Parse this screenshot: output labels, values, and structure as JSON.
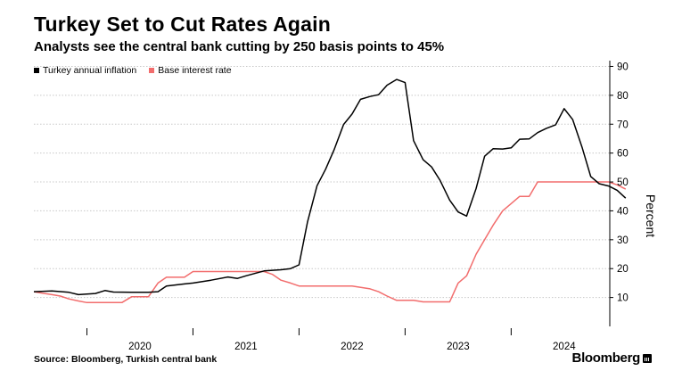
{
  "chart_data": {
    "type": "line",
    "title": "Turkey Set to Cut Rates Again",
    "subtitle": "Analysts see the central bank cutting by 250 basis points to 45%",
    "ylabel": "Percent",
    "xlabel": "",
    "ylim": [
      0,
      92
    ],
    "yticks": [
      10,
      20,
      30,
      40,
      50,
      60,
      70,
      80,
      90
    ],
    "xlim": [
      2019.5,
      2024.93
    ],
    "xticks": [
      {
        "label": "2020",
        "value": 2020.0
      },
      {
        "label": "2021",
        "value": 2021.0
      },
      {
        "label": "2022",
        "value": 2022.0
      },
      {
        "label": "2023",
        "value": 2023.0
      },
      {
        "label": "2024",
        "value": 2024.0
      }
    ],
    "legend_position": "top-left",
    "series": [
      {
        "name": "Turkey annual inflation",
        "color": "#000000",
        "points": [
          [
            2019.5,
            12.0
          ],
          [
            2019.67,
            12.3
          ],
          [
            2019.83,
            11.8
          ],
          [
            2019.92,
            11.0
          ],
          [
            2020.08,
            11.4
          ],
          [
            2020.17,
            12.4
          ],
          [
            2020.25,
            11.9
          ],
          [
            2020.42,
            11.8
          ],
          [
            2020.58,
            11.8
          ],
          [
            2020.67,
            12.0
          ],
          [
            2020.75,
            14.0
          ],
          [
            2020.92,
            14.7
          ],
          [
            2021.0,
            15.0
          ],
          [
            2021.17,
            16.0
          ],
          [
            2021.33,
            17.1
          ],
          [
            2021.42,
            16.6
          ],
          [
            2021.5,
            17.5
          ],
          [
            2021.67,
            19.2
          ],
          [
            2021.83,
            19.6
          ],
          [
            2021.92,
            20.0
          ],
          [
            2022.0,
            21.3
          ],
          [
            2022.08,
            36.1
          ],
          [
            2022.17,
            48.7
          ],
          [
            2022.25,
            54.4
          ],
          [
            2022.33,
            61.1
          ],
          [
            2022.42,
            69.9
          ],
          [
            2022.5,
            73.5
          ],
          [
            2022.58,
            78.6
          ],
          [
            2022.67,
            79.6
          ],
          [
            2022.75,
            80.2
          ],
          [
            2022.83,
            83.5
          ],
          [
            2022.92,
            85.5
          ],
          [
            2023.0,
            84.4
          ],
          [
            2023.08,
            64.3
          ],
          [
            2023.17,
            57.7
          ],
          [
            2023.25,
            55.2
          ],
          [
            2023.33,
            50.5
          ],
          [
            2023.42,
            43.7
          ],
          [
            2023.5,
            39.6
          ],
          [
            2023.58,
            38.2
          ],
          [
            2023.67,
            47.8
          ],
          [
            2023.75,
            58.9
          ],
          [
            2023.83,
            61.5
          ],
          [
            2023.92,
            61.4
          ],
          [
            2024.0,
            61.8
          ],
          [
            2024.08,
            64.8
          ],
          [
            2024.17,
            64.9
          ],
          [
            2024.25,
            67.1
          ],
          [
            2024.33,
            68.5
          ],
          [
            2024.42,
            69.8
          ],
          [
            2024.5,
            75.4
          ],
          [
            2024.58,
            71.6
          ],
          [
            2024.67,
            61.8
          ],
          [
            2024.75,
            51.9
          ],
          [
            2024.83,
            49.4
          ],
          [
            2024.92,
            48.6
          ],
          [
            2025.0,
            47.1
          ],
          [
            2025.08,
            44.4
          ]
        ]
      },
      {
        "name": "Base interest rate",
        "color": "#f26d6d",
        "points": [
          [
            2019.5,
            12.0
          ],
          [
            2019.58,
            11.5
          ],
          [
            2019.67,
            11.0
          ],
          [
            2019.75,
            10.5
          ],
          [
            2019.83,
            9.5
          ],
          [
            2019.92,
            8.8
          ],
          [
            2020.0,
            8.25
          ],
          [
            2020.08,
            8.25
          ],
          [
            2020.25,
            8.25
          ],
          [
            2020.33,
            8.25
          ],
          [
            2020.42,
            10.25
          ],
          [
            2020.58,
            10.25
          ],
          [
            2020.67,
            15.0
          ],
          [
            2020.75,
            17.0
          ],
          [
            2020.83,
            17.0
          ],
          [
            2020.92,
            17.0
          ],
          [
            2021.0,
            19.0
          ],
          [
            2021.17,
            19.0
          ],
          [
            2021.42,
            19.0
          ],
          [
            2021.67,
            19.0
          ],
          [
            2021.75,
            18.0
          ],
          [
            2021.83,
            16.0
          ],
          [
            2021.92,
            15.0
          ],
          [
            2022.0,
            14.0
          ],
          [
            2022.5,
            14.0
          ],
          [
            2022.67,
            13.0
          ],
          [
            2022.75,
            12.0
          ],
          [
            2022.83,
            10.5
          ],
          [
            2022.92,
            9.0
          ],
          [
            2023.08,
            9.0
          ],
          [
            2023.17,
            8.5
          ],
          [
            2023.25,
            8.5
          ],
          [
            2023.42,
            8.5
          ],
          [
            2023.5,
            15.0
          ],
          [
            2023.58,
            17.5
          ],
          [
            2023.67,
            25.0
          ],
          [
            2023.75,
            30.0
          ],
          [
            2023.83,
            35.0
          ],
          [
            2023.92,
            40.0
          ],
          [
            2024.0,
            42.5
          ],
          [
            2024.08,
            45.0
          ],
          [
            2024.17,
            45.0
          ],
          [
            2024.25,
            50.0
          ],
          [
            2024.33,
            50.0
          ],
          [
            2024.5,
            50.0
          ],
          [
            2024.75,
            50.0
          ],
          [
            2024.92,
            50.0
          ],
          [
            2025.0,
            49.0
          ],
          [
            2025.08,
            47.5
          ]
        ]
      }
    ],
    "source": "Source: Bloomberg, Turkish central bank",
    "brand": "Bloomberg"
  }
}
